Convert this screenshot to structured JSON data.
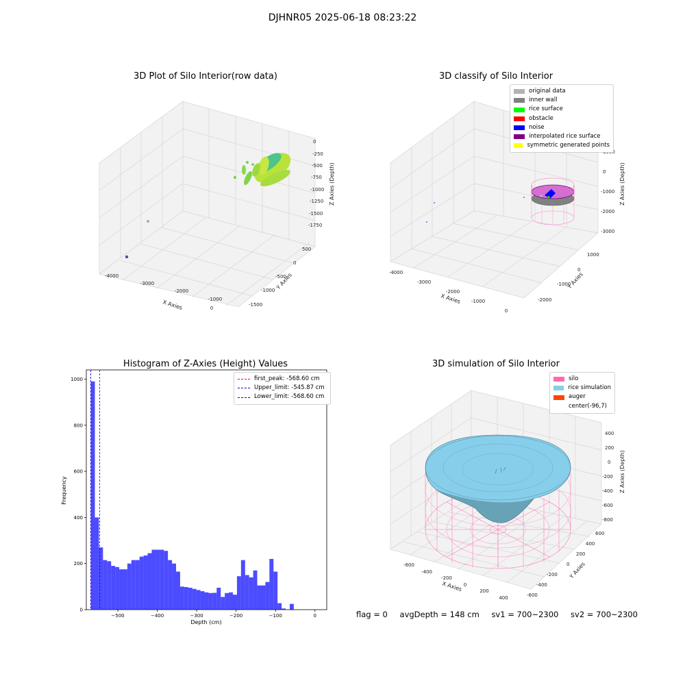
{
  "figure": {
    "suptitle": "DJHNR05 2025-06-18 08:23:22",
    "footer": {
      "flag": "flag = 0",
      "avg_depth": "avgDepth = 148 cm",
      "sv1": "sv1 = 700~2300",
      "sv2": "sv2 = 700~2300"
    }
  },
  "panels": {
    "raw": {
      "title": "3D Plot of Silo Interior(row data)",
      "xlabel": "X Axies",
      "ylabel": "Y Axies",
      "zlabel": "Z Axies (Depth)",
      "xticks": [
        "-4000",
        "-3000",
        "-2000",
        "-1000",
        "0"
      ],
      "yticks": [
        "500",
        "0",
        "-500",
        "-1000",
        "-1500"
      ],
      "zticks": [
        "0",
        "-250",
        "-500",
        "-750",
        "-1000",
        "-1250",
        "-1500",
        "-1750"
      ]
    },
    "classify": {
      "title": "3D classify of Silo Interior",
      "xlabel": "X Axies",
      "ylabel": "Y Axies",
      "zlabel": "Z Axies (Depth)",
      "xticks": [
        "-4000",
        "-3000",
        "-2000",
        "-1000",
        "0"
      ],
      "yticks": [
        "1000",
        "0",
        "-1000",
        "-2000"
      ],
      "zticks": [
        "1000",
        "0",
        "-1000",
        "-2000",
        "-3000"
      ],
      "legend": [
        {
          "label": "original data",
          "color": "#b3b3b3"
        },
        {
          "label": "inner wall",
          "color": "#808080"
        },
        {
          "label": "rice surface",
          "color": "#00ff00"
        },
        {
          "label": "obstacle",
          "color": "#ff0000"
        },
        {
          "label": "noise",
          "color": "#0000ff"
        },
        {
          "label": "interpolated rice surface",
          "color": "#800080"
        },
        {
          "label": "symmetric generated points",
          "color": "#ffff00"
        }
      ]
    },
    "simulation": {
      "title": "3D simulation of Silo Interior",
      "xlabel": "X Axies",
      "ylabel": "Y Axies",
      "zlabel": "Z Axies (Depth)",
      "xticks": [
        "-600",
        "-400",
        "-200",
        "0",
        "200",
        "400"
      ],
      "yticks": [
        "600",
        "400",
        "200",
        "0",
        "-200",
        "-400",
        "-600"
      ],
      "zticks": [
        "400",
        "200",
        "0",
        "-200",
        "-400",
        "-600",
        "-800"
      ],
      "legend": [
        {
          "label": "silo",
          "color": "#ff69b4"
        },
        {
          "label": "rice simulation",
          "color": "#87ceeb"
        },
        {
          "label": "auger",
          "color": "#ff4500"
        },
        {
          "label": "center(-96,7)",
          "color": ""
        }
      ]
    }
  },
  "chart_data": [
    {
      "type": "scatter",
      "title": "3D Plot of Silo Interior(row data)",
      "xlabel": "X Axies",
      "ylabel": "Y Axies",
      "zlabel": "Z Axies (Depth)",
      "xlim": [
        -4300,
        500
      ],
      "ylim": [
        -1600,
        700
      ],
      "zlim": [
        -1800,
        0
      ],
      "grid": true
    },
    {
      "type": "scatter",
      "title": "3D classify of Silo Interior",
      "xlabel": "X Axies",
      "ylabel": "Y Axies",
      "zlabel": "Z Axies (Depth)",
      "xlim": [
        -4300,
        500
      ],
      "ylim": [
        -2500,
        1500
      ],
      "zlim": [
        -3000,
        1000
      ],
      "legend_position": "top-right",
      "grid": true
    },
    {
      "type": "bar",
      "title": "Histogram of Z-Axies (Height) Values",
      "xlabel": "Depth (cm)",
      "ylabel": "Frequency",
      "xlim": [
        -580,
        30
      ],
      "ylim": [
        0,
        1040
      ],
      "xticks": [
        -500,
        -400,
        -300,
        -200,
        -100,
        0
      ],
      "yticks": [
        0,
        200,
        400,
        600,
        800,
        1000
      ],
      "bin_start": -568.6,
      "bin_width": 10.3,
      "values": [
        990,
        400,
        270,
        215,
        210,
        190,
        185,
        175,
        175,
        200,
        215,
        215,
        230,
        235,
        245,
        260,
        260,
        260,
        255,
        215,
        200,
        165,
        100,
        98,
        95,
        90,
        85,
        80,
        75,
        72,
        73,
        95,
        55,
        72,
        75,
        65,
        145,
        215,
        150,
        140,
        170,
        105,
        105,
        120,
        220,
        165,
        28,
        5,
        0,
        25
      ],
      "color": "#0000ff",
      "vlines": [
        {
          "label": "first_peak: -568.60 cm",
          "x": -568.6,
          "color": "#ff0000"
        },
        {
          "label": "Upper_limit: -545.87 cm",
          "x": -545.87,
          "color": "#0000ff"
        },
        {
          "label": "Lower_limit: -568.60 cm",
          "x": -568.6,
          "color": "#0000ff"
        }
      ],
      "legend_position": "top-right"
    },
    {
      "type": "surface",
      "title": "3D simulation of Silo Interior",
      "xlabel": "X Axies",
      "ylabel": "Y Axies",
      "zlabel": "Z Axies (Depth)",
      "xlim": [
        -700,
        500
      ],
      "ylim": [
        -650,
        650
      ],
      "zlim": [
        -900,
        500
      ],
      "legend_position": "top-right",
      "grid": true
    }
  ]
}
